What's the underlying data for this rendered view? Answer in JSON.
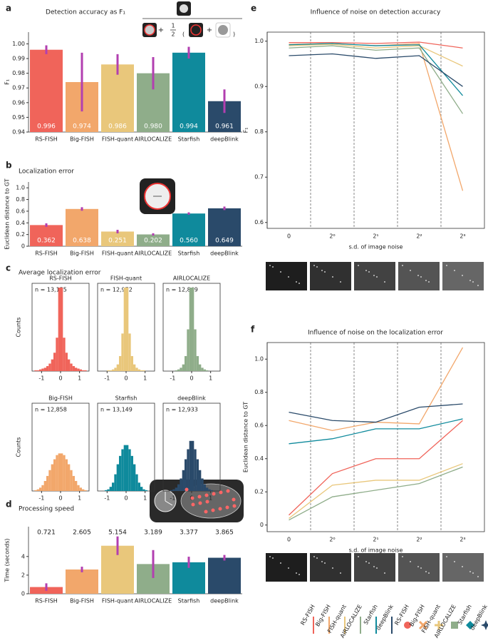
{
  "chart_data": [
    {
      "type": "bar",
      "panel": "a",
      "title": "Detection accuracy as F₁",
      "ylabel": "F₁",
      "categories": [
        "RS-FISH",
        "Big-FISH",
        "FISH-quant",
        "AIRLOCALIZE",
        "Starfish",
        "deepBlink"
      ],
      "values": [
        0.996,
        0.974,
        0.986,
        0.98,
        0.994,
        0.961
      ],
      "value_labels": [
        "0.996",
        "0.974",
        "0.986",
        "0.980",
        "0.994",
        "0.961"
      ],
      "errors": [
        0.003,
        0.02,
        0.007,
        0.011,
        0.004,
        0.008
      ],
      "colors": [
        "#f0645a",
        "#f2a76b",
        "#e9c77b",
        "#8fad8a",
        "#0f8a9c",
        "#2a4a6a"
      ],
      "value_label_position": "inside-bottom",
      "icon_text": {
        "plus": "+",
        "numerator": "1",
        "denominator": "2"
      },
      "ylim": [
        0.94,
        1.008
      ],
      "yticks": [
        0.94,
        0.95,
        0.96,
        0.97,
        0.98,
        0.99,
        {
          "value": 1,
          "label": "1.00"
        }
      ]
    },
    {
      "type": "bar",
      "panel": "b",
      "title": "Localization error",
      "ylabel": "Euclidean distance to GT",
      "categories": [
        "RS-FISH",
        "Big-FISH",
        "FISH-quant",
        "AIRLOCALIZE",
        "Starfish",
        "deepBlink"
      ],
      "values": [
        0.362,
        0.638,
        0.251,
        0.202,
        0.56,
        0.649
      ],
      "value_labels": [
        "0.362",
        "0.638",
        "0.251",
        "0.202",
        "0.560",
        "0.649"
      ],
      "errors": [
        0.03,
        0.03,
        0.03,
        0.02,
        0.02,
        0.03
      ],
      "colors": [
        "#f0645a",
        "#f2a76b",
        "#e9c77b",
        "#8fad8a",
        "#0f8a9c",
        "#2a4a6a"
      ],
      "value_label_position": "inside-bottom",
      "ylim": [
        0,
        1.1
      ],
      "yticks": [
        0,
        0.2,
        0.4,
        0.6,
        0.8,
        {
          "value": 1,
          "label": "1.0"
        }
      ]
    },
    {
      "type": "histogram",
      "panel": "c",
      "title": "Average localization error",
      "ylabel": "Counts",
      "bins": [
        -1.5,
        -1.375,
        -1.25,
        -1.125,
        -1,
        -0.875,
        -0.75,
        -0.625,
        -0.5,
        -0.375,
        -0.25,
        -0.125,
        0,
        0.125,
        0.25,
        0.375,
        0.5,
        0.625,
        0.75,
        0.875,
        1,
        1.125,
        1.25,
        1.375,
        1.5
      ],
      "xlim": [
        -1.5,
        1.5
      ],
      "xticks": [
        -1,
        0,
        1
      ],
      "ylim": [
        0,
        100
      ],
      "subplots": [
        {
          "name": "RS-FISH",
          "n_label": "n = 13,155",
          "color": "#f0645a",
          "counts": [
            0,
            1,
            1,
            2,
            3,
            4,
            6,
            9,
            14,
            22,
            40,
            100,
            100,
            40,
            22,
            14,
            9,
            6,
            4,
            3,
            2,
            1,
            1,
            0
          ]
        },
        {
          "name": "FISH-quant",
          "n_label": "n = 12,972",
          "color": "#e9c77b",
          "counts": [
            0,
            0,
            0,
            0,
            1,
            1,
            2,
            4,
            8,
            18,
            45,
            100,
            100,
            45,
            18,
            8,
            4,
            2,
            1,
            1,
            0,
            0,
            0,
            0
          ]
        },
        {
          "name": "AIRLOCALIZE",
          "n_label": "n = 12,849",
          "color": "#8fad8a",
          "counts": [
            0,
            0,
            0,
            0,
            0,
            1,
            2,
            4,
            8,
            18,
            50,
            100,
            100,
            50,
            18,
            8,
            4,
            2,
            1,
            0,
            0,
            0,
            0,
            0
          ]
        },
        {
          "name": "Big-FISH",
          "n_label": "n = 12,858",
          "color": "#f2a76b",
          "counts": [
            0,
            1,
            2,
            4,
            7,
            12,
            18,
            25,
            32,
            38,
            43,
            45,
            45,
            43,
            38,
            32,
            25,
            18,
            12,
            7,
            4,
            2,
            1,
            0
          ]
        },
        {
          "name": "Starfish",
          "n_label": "n = 13,149",
          "color": "#0f8a9c",
          "counts": [
            0,
            0,
            0,
            1,
            2,
            5,
            10,
            20,
            32,
            42,
            50,
            55,
            55,
            50,
            42,
            32,
            20,
            10,
            5,
            2,
            1,
            0,
            0,
            0
          ]
        },
        {
          "name": "deepBlink",
          "n_label": "n = 12,933",
          "color": "#2a4a6a",
          "counts": [
            0,
            0,
            0,
            1,
            2,
            4,
            8,
            15,
            25,
            38,
            50,
            60,
            60,
            50,
            38,
            25,
            15,
            8,
            4,
            2,
            1,
            0,
            0,
            0
          ]
        }
      ]
    },
    {
      "type": "bar",
      "panel": "d",
      "title": "Processing speed",
      "ylabel": "Time (seconds)",
      "categories": [
        "RS-FISH",
        "Big-FISH",
        "FISH-quant",
        "AIRLOCALIZE",
        "Starfish",
        "deepBlink"
      ],
      "values": [
        0.721,
        2.605,
        5.154,
        3.189,
        3.377,
        3.865
      ],
      "errors": [
        0.4,
        0.3,
        1.0,
        1.5,
        0.6,
        0.3
      ],
      "colors": [
        "#f0645a",
        "#f2a76b",
        "#e9c77b",
        "#8fad8a",
        "#0f8a9c",
        "#2a4a6a"
      ],
      "value_label_position": "top",
      "ylim": [
        0,
        7.2
      ],
      "yticks": [
        0,
        2,
        4
      ]
    },
    {
      "type": "line",
      "panel": "e",
      "title": "Influence of noise on detection accuracy",
      "ylabel": "F₁",
      "xlabel": "s.d. of image noise",
      "categories": [
        "0",
        "2⁰",
        "2¹",
        "2²",
        "2³"
      ],
      "series": [
        {
          "name": "RS-FISH",
          "color": "#f0645a",
          "values": [
            0.997,
            0.997,
            0.995,
            0.998,
            0.985
          ]
        },
        {
          "name": "Big-FISH",
          "color": "#f2a76b",
          "values": [
            0.993,
            0.995,
            0.99,
            0.995,
            0.67
          ]
        },
        {
          "name": "FISH-quant",
          "color": "#e9c77b",
          "values": [
            0.99,
            0.993,
            0.985,
            0.99,
            0.945
          ]
        },
        {
          "name": "AIRLOCALIZE",
          "color": "#8fad8a",
          "values": [
            0.985,
            0.99,
            0.98,
            0.985,
            0.84
          ]
        },
        {
          "name": "Starfish",
          "color": "#0f8a9c",
          "values": [
            0.992,
            0.995,
            0.99,
            0.992,
            0.88
          ]
        },
        {
          "name": "deepBlink",
          "color": "#2a4a6a",
          "values": [
            0.968,
            0.972,
            0.962,
            0.968,
            0.9
          ]
        }
      ],
      "ylim": [
        0.587,
        1.02
      ],
      "yticks": [
        0.6,
        0.7,
        0.8,
        0.9,
        {
          "value": 1,
          "label": "1.0"
        }
      ]
    },
    {
      "type": "line",
      "panel": "f",
      "title": "Influence of noise on the localization error",
      "ylabel": "Euclidean distance to GT",
      "xlabel": "s.d. of image noise",
      "categories": [
        "0",
        "2⁰",
        "2¹",
        "2²",
        "2³"
      ],
      "series": [
        {
          "name": "RS-FISH",
          "color": "#f0645a",
          "values": [
            0.06,
            0.31,
            0.4,
            0.4,
            0.63
          ]
        },
        {
          "name": "Big-FISH",
          "color": "#f2a76b",
          "values": [
            0.63,
            0.57,
            0.62,
            0.61,
            1.07
          ]
        },
        {
          "name": "FISH-quant",
          "color": "#e9c77b",
          "values": [
            0.04,
            0.24,
            0.27,
            0.27,
            0.37
          ]
        },
        {
          "name": "AIRLOCALIZE",
          "color": "#8fad8a",
          "values": [
            0.03,
            0.17,
            0.21,
            0.25,
            0.35
          ]
        },
        {
          "name": "Starfish",
          "color": "#0f8a9c",
          "values": [
            0.49,
            0.52,
            0.58,
            0.58,
            0.64
          ]
        },
        {
          "name": "deepBlink",
          "color": "#2a4a6a",
          "values": [
            0.68,
            0.63,
            0.62,
            0.71,
            0.73
          ]
        }
      ],
      "legend": "bottom",
      "ylim": [
        -0.04,
        1.1
      ],
      "yticks": [
        0,
        0.2,
        0.4,
        0.6,
        0.8,
        {
          "value": 1,
          "label": "1.0"
        }
      ]
    }
  ]
}
